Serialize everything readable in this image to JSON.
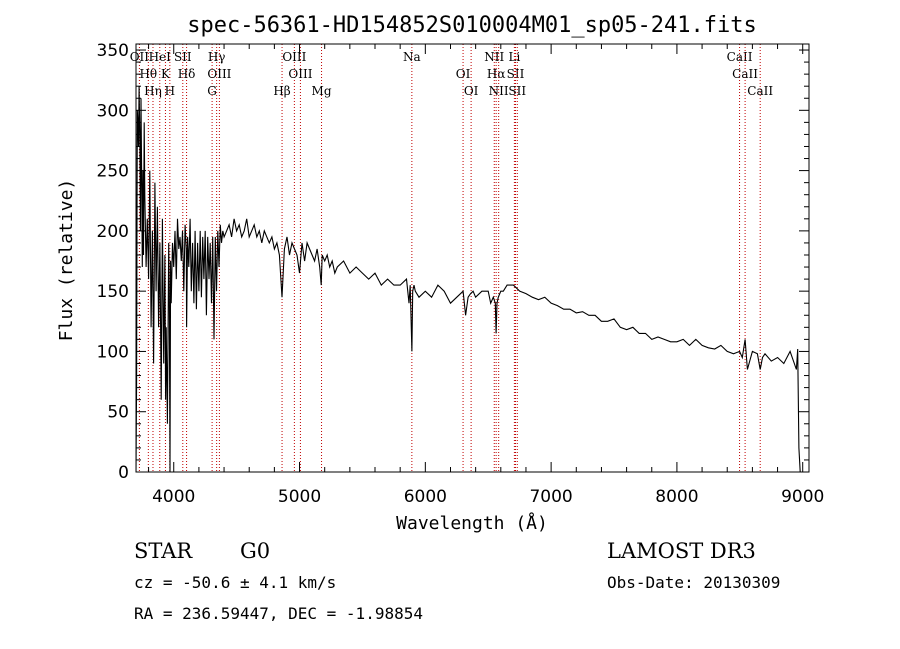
{
  "chart_data": {
    "type": "line",
    "title": "spec-56361-HD154852S010004M01_sp05-241.fits",
    "xlabel": "Wavelength (Å)",
    "ylabel": "Flux (relative)",
    "xlim": [
      3700,
      9050
    ],
    "ylim": [
      0,
      355
    ],
    "xticks": [
      4000,
      5000,
      6000,
      7000,
      8000,
      9000
    ],
    "xtick_labels": [
      "4000",
      "5000",
      "6000",
      "7000",
      "8000",
      "9000"
    ],
    "yticks": [
      0,
      50,
      100,
      150,
      200,
      250,
      300,
      350
    ],
    "ytick_labels": [
      "0",
      "50",
      "100",
      "150",
      "200",
      "250",
      "300",
      "350"
    ],
    "grid": false,
    "series": [
      {
        "name": "flux",
        "x": [
          3700,
          3705,
          3710,
          3715,
          3720,
          3725,
          3730,
          3735,
          3740,
          3745,
          3750,
          3755,
          3760,
          3765,
          3770,
          3780,
          3790,
          3800,
          3810,
          3820,
          3830,
          3840,
          3850,
          3860,
          3870,
          3880,
          3890,
          3900,
          3910,
          3920,
          3930,
          3935,
          3940,
          3950,
          3960,
          3965,
          3970,
          3975,
          3980,
          3990,
          4000,
          4010,
          4020,
          4030,
          4040,
          4050,
          4060,
          4070,
          4080,
          4090,
          4100,
          4102,
          4110,
          4120,
          4130,
          4140,
          4150,
          4160,
          4170,
          4180,
          4190,
          4200,
          4210,
          4220,
          4230,
          4240,
          4250,
          4260,
          4270,
          4280,
          4290,
          4300,
          4310,
          4320,
          4330,
          4340,
          4350,
          4360,
          4370,
          4380,
          4390,
          4400,
          4420,
          4440,
          4460,
          4480,
          4500,
          4520,
          4540,
          4560,
          4580,
          4600,
          4620,
          4640,
          4660,
          4680,
          4700,
          4720,
          4740,
          4760,
          4780,
          4800,
          4820,
          4840,
          4861,
          4880,
          4900,
          4920,
          4940,
          4960,
          4980,
          5000,
          5020,
          5040,
          5060,
          5080,
          5100,
          5120,
          5140,
          5160,
          5172,
          5180,
          5200,
          5220,
          5240,
          5260,
          5280,
          5300,
          5350,
          5400,
          5450,
          5500,
          5550,
          5600,
          5650,
          5700,
          5750,
          5800,
          5850,
          5870,
          5880,
          5893,
          5900,
          5910,
          5920,
          5950,
          6000,
          6050,
          6100,
          6150,
          6200,
          6250,
          6300,
          6320,
          6340,
          6360,
          6380,
          6400,
          6450,
          6500,
          6520,
          6540,
          6556,
          6563,
          6570,
          6580,
          6600,
          6620,
          6650,
          6700,
          6750,
          6800,
          6850,
          6900,
          6950,
          7000,
          7050,
          7100,
          7150,
          7200,
          7250,
          7300,
          7350,
          7400,
          7450,
          7500,
          7550,
          7600,
          7650,
          7700,
          7750,
          7800,
          7850,
          7900,
          7950,
          8000,
          8050,
          8100,
          8150,
          8200,
          8250,
          8300,
          8350,
          8400,
          8450,
          8498,
          8520,
          8542,
          8560,
          8600,
          8640,
          8662,
          8680,
          8700,
          8750,
          8800,
          8850,
          8900,
          8950,
          8960,
          8970,
          8980,
          8990,
          9000,
          9010
        ],
        "y": [
          0,
          75,
          300,
          290,
          270,
          320,
          280,
          200,
          310,
          240,
          170,
          250,
          180,
          290,
          230,
          170,
          210,
          160,
          250,
          120,
          200,
          90,
          240,
          150,
          220,
          120,
          190,
          60,
          210,
          90,
          180,
          60,
          120,
          40,
          190,
          150,
          0,
          175,
          140,
          190,
          170,
          200,
          160,
          210,
          185,
          195,
          175,
          200,
          150,
          205,
          185,
          120,
          195,
          170,
          210,
          150,
          190,
          140,
          200,
          135,
          190,
          150,
          200,
          145,
          195,
          160,
          200,
          130,
          195,
          160,
          190,
          140,
          195,
          110,
          195,
          150,
          200,
          170,
          205,
          190,
          200,
          195,
          200,
          205,
          195,
          210,
          200,
          205,
          195,
          200,
          210,
          195,
          200,
          205,
          195,
          200,
          190,
          200,
          195,
          190,
          195,
          185,
          190,
          180,
          145,
          185,
          195,
          180,
          190,
          185,
          180,
          165,
          190,
          175,
          190,
          185,
          180,
          175,
          185,
          170,
          155,
          180,
          175,
          180,
          170,
          175,
          165,
          170,
          175,
          165,
          170,
          165,
          160,
          165,
          155,
          160,
          155,
          155,
          160,
          140,
          155,
          100,
          150,
          155,
          150,
          145,
          150,
          145,
          155,
          150,
          140,
          145,
          150,
          130,
          145,
          148,
          150,
          145,
          150,
          150,
          140,
          145,
          140,
          115,
          140,
          145,
          150,
          150,
          155,
          155,
          150,
          148,
          145,
          143,
          145,
          140,
          138,
          135,
          135,
          132,
          133,
          130,
          130,
          125,
          125,
          127,
          120,
          118,
          120,
          115,
          115,
          110,
          112,
          110,
          108,
          108,
          110,
          105,
          110,
          105,
          103,
          102,
          105,
          100,
          98,
          100,
          95,
          110,
          85,
          100,
          98,
          85,
          95,
          98,
          92,
          95,
          90,
          100,
          85,
          102,
          20,
          0,
          0,
          0,
          0
        ]
      }
    ],
    "line_markers": [
      {
        "name": "OII",
        "wavelength": 3727
      },
      {
        "name": "Hθ",
        "wavelength": 3798
      },
      {
        "name": "Hη",
        "wavelength": 3835
      },
      {
        "name": "HeI",
        "wavelength": 3889
      },
      {
        "name": "K",
        "wavelength": 3934
      },
      {
        "name": "H",
        "wavelength": 3969
      },
      {
        "name": "SII",
        "wavelength": 4072
      },
      {
        "name": "Hδ",
        "wavelength": 4102
      },
      {
        "name": "G",
        "wavelength": 4305
      },
      {
        "name": "Hγ",
        "wavelength": 4341
      },
      {
        "name": "OIII",
        "wavelength": 4363
      },
      {
        "name": "Hβ",
        "wavelength": 4861
      },
      {
        "name": "OIII",
        "wavelength": 4959
      },
      {
        "name": "OIII",
        "wavelength": 5007
      },
      {
        "name": "Mg",
        "wavelength": 5175
      },
      {
        "name": "Na",
        "wavelength": 5893
      },
      {
        "name": "OI",
        "wavelength": 6300
      },
      {
        "name": "OI",
        "wavelength": 6364
      },
      {
        "name": "NII",
        "wavelength": 6548
      },
      {
        "name": "Hα",
        "wavelength": 6563
      },
      {
        "name": "NII",
        "wavelength": 6583
      },
      {
        "name": "Li",
        "wavelength": 6708
      },
      {
        "name": "SII",
        "wavelength": 6717
      },
      {
        "name": "SII",
        "wavelength": 6731
      },
      {
        "name": "CaII",
        "wavelength": 8498
      },
      {
        "name": "CaII",
        "wavelength": 8542
      },
      {
        "name": "CaII",
        "wavelength": 8662
      }
    ],
    "annotations": {
      "object_class": "STAR",
      "subclass": "G0",
      "redshift": "cz = -50.6 ± 4.1 km/s",
      "coords": "RA = 236.59447, DEC =  -1.98854",
      "survey": "LAMOST DR3",
      "obs_date": "Obs-Date: 20130309"
    }
  }
}
